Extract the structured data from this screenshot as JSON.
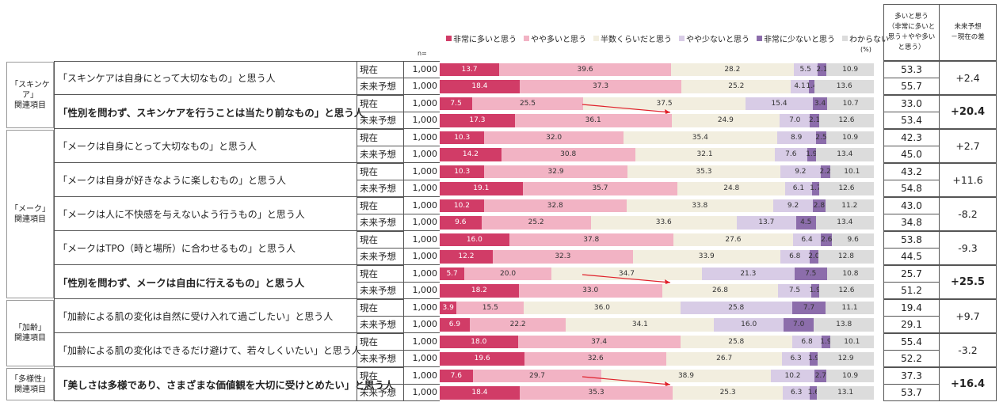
{
  "chart_data": {
    "type": "stacked_bar_table",
    "n_label": "n=",
    "unit": "(%)",
    "sum_header": "多いと思う\n（非常に多いと\n思う＋やや多い\nと思う）",
    "diff_header": "未来予想\n－現在の差",
    "xlim": [
      0,
      100
    ],
    "series": [
      {
        "name": "非常に多いと思う",
        "color": "#d13c67"
      },
      {
        "name": "やや多いと思う",
        "color": "#f2b3c4"
      },
      {
        "name": "半数くらいだと思う",
        "color": "#f2eedf"
      },
      {
        "name": "やや少ないと思う",
        "color": "#d8cce6"
      },
      {
        "name": "非常に少ないと思う",
        "color": "#8c6dab"
      },
      {
        "name": "わからない",
        "color": "#dcdcdc"
      }
    ],
    "groups": [
      {
        "label": "「スキンケア」\n関連項目",
        "items": [
          {
            "label": "「スキンケアは自身にとって大切なもの」と思う人",
            "bold": false,
            "diff": "+2.4",
            "rows": [
              {
                "label": "現在",
                "n": "1,000",
                "values": [
                  13.7,
                  39.6,
                  28.2,
                  5.5,
                  2.1,
                  10.9
                ],
                "value_labels": [
                  "13.7",
                  "39.6",
                  "28.2",
                  "5.5",
                  "2.1",
                  "10.9"
                ],
                "sum": "53.3"
              },
              {
                "label": "未来予想",
                "n": "1,000",
                "values": [
                  18.4,
                  37.3,
                  25.2,
                  4.1,
                  1.4,
                  13.6
                ],
                "value_labels": [
                  "18.4",
                  "37.3",
                  "25.2",
                  "4.1",
                  "1.4",
                  "13.6"
                ],
                "sum": "55.7"
              }
            ]
          },
          {
            "label": "「性別を問わず、スキンケアを行うことは当たり前なもの」と思う人",
            "bold": true,
            "diff": "+20.4",
            "rows": [
              {
                "label": "現在",
                "n": "1,000",
                "values": [
                  7.5,
                  25.5,
                  37.5,
                  15.4,
                  3.4,
                  10.7
                ],
                "value_labels": [
                  "7.5",
                  "25.5",
                  "37.5",
                  "15.4",
                  "3.4",
                  "10.7"
                ],
                "sum": "33.0"
              },
              {
                "label": "未来予想",
                "n": "1,000",
                "values": [
                  17.3,
                  36.1,
                  24.9,
                  7.0,
                  2.1,
                  12.6
                ],
                "value_labels": [
                  "17.3",
                  "36.1",
                  "24.9",
                  "7.0",
                  "2.1",
                  "12.6"
                ],
                "sum": "53.4"
              }
            ]
          }
        ]
      },
      {
        "label": "「メーク」\n関連項目",
        "items": [
          {
            "label": "「メークは自身にとって大切なもの」と思う人",
            "bold": false,
            "diff": "+2.7",
            "rows": [
              {
                "label": "現在",
                "n": "1,000",
                "values": [
                  10.3,
                  32.0,
                  35.4,
                  8.9,
                  2.5,
                  10.9
                ],
                "value_labels": [
                  "10.3",
                  "32.0",
                  "35.4",
                  "8.9",
                  "2.5",
                  "10.9"
                ],
                "sum": "42.3"
              },
              {
                "label": "未来予想",
                "n": "1,000",
                "values": [
                  14.2,
                  30.8,
                  32.1,
                  7.6,
                  1.9,
                  13.4
                ],
                "value_labels": [
                  "14.2",
                  "30.8",
                  "32.1",
                  "7.6",
                  "1.9",
                  "13.4"
                ],
                "sum": "45.0"
              }
            ]
          },
          {
            "label": "「メークは自身が好きなように楽しむもの」と思う人",
            "bold": false,
            "diff": "+11.6",
            "rows": [
              {
                "label": "現在",
                "n": "1,000",
                "values": [
                  10.3,
                  32.9,
                  35.3,
                  9.2,
                  2.2,
                  10.1
                ],
                "value_labels": [
                  "10.3",
                  "32.9",
                  "35.3",
                  "9.2",
                  "2.2",
                  "10.1"
                ],
                "sum": "43.2"
              },
              {
                "label": "未来予想",
                "n": "1,000",
                "values": [
                  19.1,
                  35.7,
                  24.8,
                  6.1,
                  1.7,
                  12.6
                ],
                "value_labels": [
                  "19.1",
                  "35.7",
                  "24.8",
                  "6.1",
                  "1.7",
                  "12.6"
                ],
                "sum": "54.8"
              }
            ]
          },
          {
            "label": "「メークは人に不快感を与えないよう行うもの」と思う人",
            "bold": false,
            "diff": "-8.2",
            "rows": [
              {
                "label": "現在",
                "n": "1,000",
                "values": [
                  10.2,
                  32.8,
                  33.8,
                  9.2,
                  2.8,
                  11.2
                ],
                "value_labels": [
                  "10.2",
                  "32.8",
                  "33.8",
                  "9.2",
                  "2.8",
                  "11.2"
                ],
                "sum": "43.0"
              },
              {
                "label": "未来予想",
                "n": "1,000",
                "values": [
                  9.6,
                  25.2,
                  33.6,
                  13.7,
                  4.5,
                  13.4
                ],
                "value_labels": [
                  "9.6",
                  "25.2",
                  "33.6",
                  "13.7",
                  "4.5",
                  "13.4"
                ],
                "sum": "34.8"
              }
            ]
          },
          {
            "label": "「メークはTPO（時と場所）に合わせるもの」と思う人",
            "bold": false,
            "diff": "-9.3",
            "rows": [
              {
                "label": "現在",
                "n": "1,000",
                "values": [
                  16.0,
                  37.8,
                  27.6,
                  6.4,
                  2.6,
                  9.6
                ],
                "value_labels": [
                  "16.0",
                  "37.8",
                  "27.6",
                  "6.4",
                  "2.6",
                  "9.6"
                ],
                "sum": "53.8"
              },
              {
                "label": "未来予想",
                "n": "1,000",
                "values": [
                  12.2,
                  32.3,
                  33.9,
                  6.8,
                  2.0,
                  12.8
                ],
                "value_labels": [
                  "12.2",
                  "32.3",
                  "33.9",
                  "6.8",
                  "2.0",
                  "12.8"
                ],
                "sum": "44.5"
              }
            ]
          },
          {
            "label": "「性別を問わず、メークは自由に行えるもの」と思う人",
            "bold": true,
            "diff": "+25.5",
            "rows": [
              {
                "label": "現在",
                "n": "1,000",
                "values": [
                  5.7,
                  20.0,
                  34.7,
                  21.3,
                  7.5,
                  10.8
                ],
                "value_labels": [
                  "5.7",
                  "20.0",
                  "34.7",
                  "21.3",
                  "7.5",
                  "10.8"
                ],
                "sum": "25.7"
              },
              {
                "label": "未来予想",
                "n": "1,000",
                "values": [
                  18.2,
                  33.0,
                  26.8,
                  7.5,
                  1.9,
                  12.6
                ],
                "value_labels": [
                  "18.2",
                  "33.0",
                  "26.8",
                  "7.5",
                  "1.9",
                  "12.6"
                ],
                "sum": "51.2"
              }
            ]
          }
        ]
      },
      {
        "label": "「加齢」\n関連項目",
        "items": [
          {
            "label": "「加齢による肌の変化は自然に受け入れて過ごしたい」と思う人",
            "bold": false,
            "diff": "+9.7",
            "rows": [
              {
                "label": "現在",
                "n": "1,000",
                "values": [
                  3.9,
                  15.5,
                  36.0,
                  25.8,
                  7.7,
                  11.1
                ],
                "value_labels": [
                  "3.9",
                  "15.5",
                  "36.0",
                  "25.8",
                  "7.7",
                  "11.1"
                ],
                "sum": "19.4"
              },
              {
                "label": "未来予想",
                "n": "1,000",
                "values": [
                  6.9,
                  22.2,
                  34.1,
                  16.0,
                  7.0,
                  13.8
                ],
                "value_labels": [
                  "6.9",
                  "22.2",
                  "34.1",
                  "16.0",
                  "7.0",
                  "13.8"
                ],
                "sum": "29.1"
              }
            ]
          },
          {
            "label": "「加齢による肌の変化はできるだけ避けて、若々しくいたい」と思う人",
            "bold": false,
            "diff": "-3.2",
            "rows": [
              {
                "label": "現在",
                "n": "1,000",
                "values": [
                  18.0,
                  37.4,
                  25.8,
                  6.8,
                  1.9,
                  10.1
                ],
                "value_labels": [
                  "18.0",
                  "37.4",
                  "25.8",
                  "6.8",
                  "1.9",
                  "10.1"
                ],
                "sum": "55.4"
              },
              {
                "label": "未来予想",
                "n": "1,000",
                "values": [
                  19.6,
                  32.6,
                  26.7,
                  6.3,
                  1.9,
                  12.9
                ],
                "value_labels": [
                  "19.6",
                  "32.6",
                  "26.7",
                  "6.3",
                  "1.9",
                  "12.9"
                ],
                "sum": "52.2"
              }
            ]
          }
        ]
      },
      {
        "label": "「多様性」\n関連項目",
        "items": [
          {
            "label": "「美しさは多様であり、さまざまな価値観を大切に受けとめたい」と思う人",
            "bold": true,
            "diff": "+16.4",
            "rows": [
              {
                "label": "現在",
                "n": "1,000",
                "values": [
                  7.6,
                  29.7,
                  38.9,
                  10.2,
                  2.7,
                  10.9
                ],
                "value_labels": [
                  "7.6",
                  "29.7",
                  "38.9",
                  "10.2",
                  "2.7",
                  "10.9"
                ],
                "sum": "37.3"
              },
              {
                "label": "未来予想",
                "n": "1,000",
                "values": [
                  18.4,
                  35.3,
                  25.3,
                  6.3,
                  1.6,
                  13.1
                ],
                "value_labels": [
                  "18.4",
                  "35.3",
                  "25.3",
                  "6.3",
                  "1.6",
                  "13.1"
                ],
                "sum": "53.7"
              }
            ]
          }
        ]
      }
    ]
  }
}
